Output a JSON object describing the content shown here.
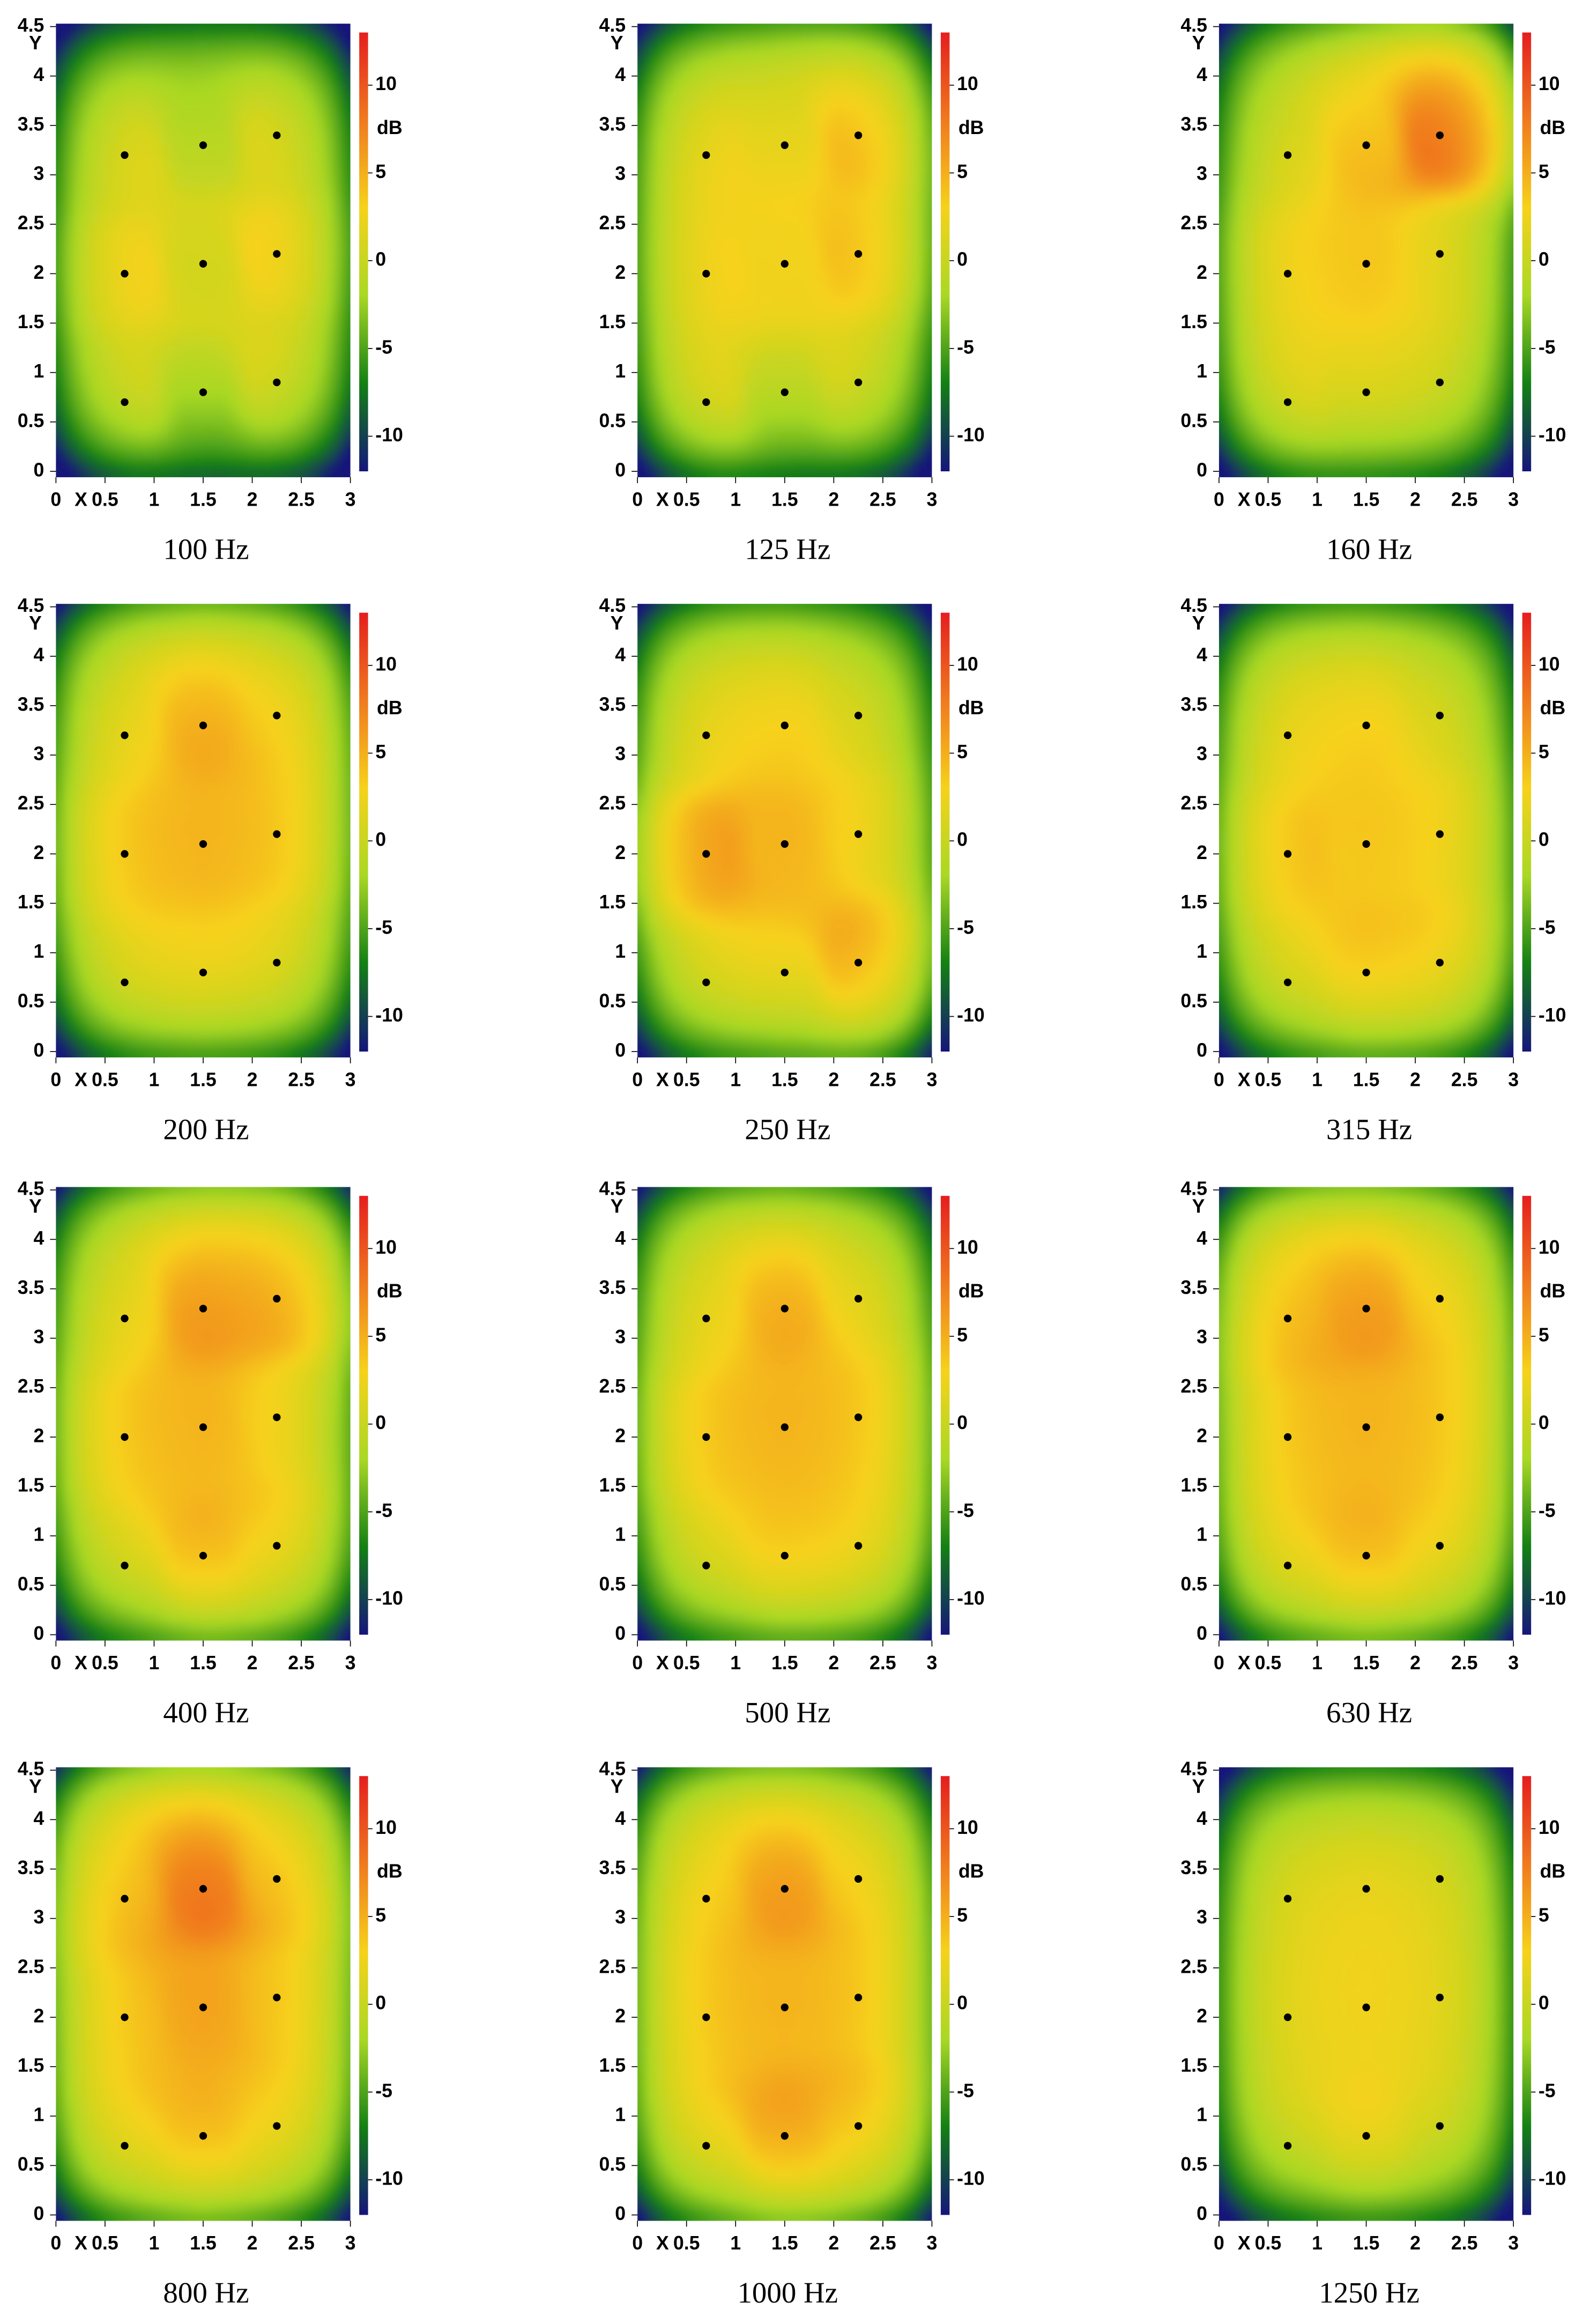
{
  "chart_data": [
    {
      "type": "heatmap",
      "title": "100 Hz",
      "x_label": "X",
      "y_label": "Y",
      "colorbar_label": "dB",
      "xlim": [
        0,
        3
      ],
      "ylim": [
        0,
        4.5
      ],
      "xticks": [
        0,
        0.5,
        1,
        1.5,
        2,
        2.5,
        3
      ],
      "yticks": [
        0,
        0.5,
        1,
        1.5,
        2,
        2.5,
        3,
        3.5,
        4,
        4.5
      ],
      "clim": [
        -12,
        13
      ],
      "cticks": [
        -10,
        -5,
        0,
        5,
        10
      ],
      "colormap": [
        "#15157a",
        "#138013",
        "#a9d824",
        "#f6d21a",
        "#f07a1e",
        "#e51e1e"
      ],
      "points": {
        "x": [
          0.7,
          0.7,
          0.7,
          1.5,
          1.5,
          1.5,
          2.25,
          2.25,
          2.25
        ],
        "y": [
          0.7,
          2,
          3.2,
          0.8,
          2.1,
          3.3,
          0.9,
          2.2,
          3.4
        ],
        "values": [
          3,
          4,
          3,
          0,
          1,
          0,
          3,
          4,
          3
        ]
      }
    },
    {
      "type": "heatmap",
      "title": "125 Hz",
      "x_label": "X",
      "y_label": "Y",
      "colorbar_label": "dB",
      "xlim": [
        0,
        3
      ],
      "ylim": [
        0,
        4.5
      ],
      "xticks": [
        0,
        0.5,
        1,
        1.5,
        2,
        2.5,
        3
      ],
      "yticks": [
        0,
        0.5,
        1,
        1.5,
        2,
        2.5,
        3,
        3.5,
        4,
        4.5
      ],
      "clim": [
        -12,
        13
      ],
      "cticks": [
        -10,
        -5,
        0,
        5,
        10
      ],
      "colormap": [
        "#15157a",
        "#138013",
        "#a9d824",
        "#f6d21a",
        "#f07a1e",
        "#e51e1e"
      ],
      "points": {
        "x": [
          0.7,
          0.7,
          0.7,
          1.5,
          1.5,
          1.5,
          2.25,
          2.25,
          2.25
        ],
        "y": [
          0.7,
          2,
          3.2,
          0.8,
          2.1,
          3.3,
          0.9,
          2.2,
          3.4
        ],
        "values": [
          4,
          4,
          4,
          1,
          3,
          3,
          3,
          5,
          6
        ]
      }
    },
    {
      "type": "heatmap",
      "title": "160 Hz",
      "x_label": "X",
      "y_label": "Y",
      "colorbar_label": "dB",
      "xlim": [
        0,
        3
      ],
      "ylim": [
        0,
        4.5
      ],
      "xticks": [
        0,
        0.5,
        1,
        1.5,
        2,
        2.5,
        3
      ],
      "yticks": [
        0,
        0.5,
        1,
        1.5,
        2,
        2.5,
        3,
        3.5,
        4,
        4.5
      ],
      "clim": [
        -12,
        13
      ],
      "cticks": [
        -10,
        -5,
        0,
        5,
        10
      ],
      "colormap": [
        "#15157a",
        "#138013",
        "#a9d824",
        "#f6d21a",
        "#f07a1e",
        "#e51e1e"
      ],
      "points": {
        "x": [
          0.7,
          0.7,
          0.7,
          1.5,
          1.5,
          1.5,
          2.25,
          2.25,
          2.25
        ],
        "y": [
          0.7,
          2,
          3.2,
          0.8,
          2.1,
          3.3,
          0.9,
          2.2,
          3.4
        ],
        "values": [
          4,
          4,
          3,
          3,
          4,
          5,
          3,
          3,
          10
        ]
      }
    },
    {
      "type": "heatmap",
      "title": "200 Hz",
      "x_label": "X",
      "y_label": "Y",
      "colorbar_label": "dB",
      "xlim": [
        0,
        3
      ],
      "ylim": [
        0,
        4.5
      ],
      "xticks": [
        0,
        0.5,
        1,
        1.5,
        2,
        2.5,
        3
      ],
      "yticks": [
        0,
        0.5,
        1,
        1.5,
        2,
        2.5,
        3,
        3.5,
        4,
        4.5
      ],
      "clim": [
        -12,
        13
      ],
      "cticks": [
        -10,
        -5,
        0,
        5,
        10
      ],
      "colormap": [
        "#15157a",
        "#138013",
        "#a9d824",
        "#f6d21a",
        "#f07a1e",
        "#e51e1e"
      ],
      "points": {
        "x": [
          0.7,
          0.7,
          0.7,
          1.5,
          1.5,
          1.5,
          2.25,
          2.25,
          2.25
        ],
        "y": [
          0.7,
          2,
          3.2,
          0.8,
          2.1,
          3.3,
          0.9,
          2.2,
          3.4
        ],
        "values": [
          4,
          5,
          4,
          4,
          5,
          6,
          4,
          5,
          5
        ]
      }
    },
    {
      "type": "heatmap",
      "title": "250 Hz",
      "x_label": "X",
      "y_label": "Y",
      "colorbar_label": "dB",
      "xlim": [
        0,
        3
      ],
      "ylim": [
        0,
        4.5
      ],
      "xticks": [
        0,
        0.5,
        1,
        1.5,
        2,
        2.5,
        3
      ],
      "yticks": [
        0,
        0.5,
        1,
        1.5,
        2,
        2.5,
        3,
        3.5,
        4,
        4.5
      ],
      "clim": [
        -12,
        13
      ],
      "cticks": [
        -10,
        -5,
        0,
        5,
        10
      ],
      "colormap": [
        "#15157a",
        "#138013",
        "#a9d824",
        "#f6d21a",
        "#f07a1e",
        "#e51e1e"
      ],
      "points": {
        "x": [
          0.7,
          0.7,
          0.7,
          1.5,
          1.5,
          1.5,
          2.25,
          2.25,
          2.25
        ],
        "y": [
          0.7,
          2,
          3.2,
          0.8,
          2.1,
          3.3,
          0.9,
          2.2,
          3.4
        ],
        "values": [
          4,
          7,
          4,
          4,
          5,
          4,
          7,
          4,
          3
        ]
      }
    },
    {
      "type": "heatmap",
      "title": "315 Hz",
      "x_label": "X",
      "y_label": "Y",
      "colorbar_label": "dB",
      "xlim": [
        0,
        3
      ],
      "ylim": [
        0,
        4.5
      ],
      "xticks": [
        0,
        0.5,
        1,
        1.5,
        2,
        2.5,
        3
      ],
      "yticks": [
        0,
        0.5,
        1,
        1.5,
        2,
        2.5,
        3,
        3.5,
        4,
        4.5
      ],
      "clim": [
        -12,
        13
      ],
      "cticks": [
        -10,
        -5,
        0,
        5,
        10
      ],
      "colormap": [
        "#15157a",
        "#138013",
        "#a9d824",
        "#f6d21a",
        "#f07a1e",
        "#e51e1e"
      ],
      "points": {
        "x": [
          0.7,
          0.7,
          0.7,
          1.5,
          1.5,
          1.5,
          2.25,
          2.25,
          2.25
        ],
        "y": [
          0.7,
          2,
          3.2,
          0.8,
          2.1,
          3.3,
          0.9,
          2.2,
          3.4
        ],
        "values": [
          4,
          5,
          4,
          5,
          4,
          4,
          5,
          4,
          3
        ]
      }
    },
    {
      "type": "heatmap",
      "title": "400 Hz",
      "x_label": "X",
      "y_label": "Y",
      "colorbar_label": "dB",
      "xlim": [
        0,
        3
      ],
      "ylim": [
        0,
        4.5
      ],
      "xticks": [
        0,
        0.5,
        1,
        1.5,
        2,
        2.5,
        3
      ],
      "yticks": [
        0,
        0.5,
        1,
        1.5,
        2,
        2.5,
        3,
        3.5,
        4,
        4.5
      ],
      "clim": [
        -12,
        13
      ],
      "cticks": [
        -10,
        -5,
        0,
        5,
        10
      ],
      "colormap": [
        "#15157a",
        "#138013",
        "#a9d824",
        "#f6d21a",
        "#f07a1e",
        "#e51e1e"
      ],
      "points": {
        "x": [
          0.7,
          0.7,
          0.7,
          1.5,
          1.5,
          1.5,
          2.25,
          2.25,
          2.25
        ],
        "y": [
          0.7,
          2,
          3.2,
          0.8,
          2.1,
          3.3,
          0.9,
          2.2,
          3.4
        ],
        "values": [
          4,
          5,
          4,
          6,
          5,
          7,
          5,
          4,
          7
        ]
      }
    },
    {
      "type": "heatmap",
      "title": "500 Hz",
      "x_label": "X",
      "y_label": "Y",
      "colorbar_label": "dB",
      "xlim": [
        0,
        3
      ],
      "ylim": [
        0,
        4.5
      ],
      "xticks": [
        0,
        0.5,
        1,
        1.5,
        2,
        2.5,
        3
      ],
      "yticks": [
        0,
        0.5,
        1,
        1.5,
        2,
        2.5,
        3,
        3.5,
        4,
        4.5
      ],
      "clim": [
        -12,
        13
      ],
      "cticks": [
        -10,
        -5,
        0,
        5,
        10
      ],
      "colormap": [
        "#15157a",
        "#138013",
        "#a9d824",
        "#f6d21a",
        "#f07a1e",
        "#e51e1e"
      ],
      "points": {
        "x": [
          0.7,
          0.7,
          0.7,
          1.5,
          1.5,
          1.5,
          2.25,
          2.25,
          2.25
        ],
        "y": [
          0.7,
          2,
          3.2,
          0.8,
          2.1,
          3.3,
          0.9,
          2.2,
          3.4
        ],
        "values": [
          4,
          5,
          4,
          5,
          5,
          6,
          5,
          5,
          4
        ]
      }
    },
    {
      "type": "heatmap",
      "title": "630 Hz",
      "x_label": "X",
      "y_label": "Y",
      "colorbar_label": "dB",
      "xlim": [
        0,
        3
      ],
      "ylim": [
        0,
        4.5
      ],
      "xticks": [
        0,
        0.5,
        1,
        1.5,
        2,
        2.5,
        3
      ],
      "yticks": [
        0,
        0.5,
        1,
        1.5,
        2,
        2.5,
        3,
        3.5,
        4,
        4.5
      ],
      "clim": [
        -12,
        13
      ],
      "cticks": [
        -10,
        -5,
        0,
        5,
        10
      ],
      "colormap": [
        "#15157a",
        "#138013",
        "#a9d824",
        "#f6d21a",
        "#f07a1e",
        "#e51e1e"
      ],
      "points": {
        "x": [
          0.7,
          0.7,
          0.7,
          1.5,
          1.5,
          1.5,
          2.25,
          2.25,
          2.25
        ],
        "y": [
          0.7,
          2,
          3.2,
          0.8,
          2.1,
          3.3,
          0.9,
          2.2,
          3.4
        ],
        "values": [
          5,
          5,
          6,
          6,
          5,
          7,
          5,
          5,
          5
        ]
      }
    },
    {
      "type": "heatmap",
      "title": "800 Hz",
      "x_label": "X",
      "y_label": "Y",
      "colorbar_label": "dB",
      "xlim": [
        0,
        3
      ],
      "ylim": [
        0,
        4.5
      ],
      "xticks": [
        0,
        0.5,
        1,
        1.5,
        2,
        2.5,
        3
      ],
      "yticks": [
        0,
        0.5,
        1,
        1.5,
        2,
        2.5,
        3,
        3.5,
        4,
        4.5
      ],
      "clim": [
        -12,
        13
      ],
      "cticks": [
        -10,
        -5,
        0,
        5,
        10
      ],
      "colormap": [
        "#15157a",
        "#138013",
        "#a9d824",
        "#f6d21a",
        "#f07a1e",
        "#e51e1e"
      ],
      "points": {
        "x": [
          0.7,
          0.7,
          0.7,
          1.5,
          1.5,
          1.5,
          2.25,
          2.25,
          2.25
        ],
        "y": [
          0.7,
          2,
          3.2,
          0.8,
          2.1,
          3.3,
          0.9,
          2.2,
          3.4
        ],
        "values": [
          5,
          5,
          6,
          6,
          6,
          9,
          5,
          5,
          6
        ]
      }
    },
    {
      "type": "heatmap",
      "title": "1000 Hz",
      "x_label": "X",
      "y_label": "Y",
      "colorbar_label": "dB",
      "xlim": [
        0,
        3
      ],
      "ylim": [
        0,
        4.5
      ],
      "xticks": [
        0,
        0.5,
        1,
        1.5,
        2,
        2.5,
        3
      ],
      "yticks": [
        0,
        0.5,
        1,
        1.5,
        2,
        2.5,
        3,
        3.5,
        4,
        4.5
      ],
      "clim": [
        -12,
        13
      ],
      "cticks": [
        -10,
        -5,
        0,
        5,
        10
      ],
      "colormap": [
        "#15157a",
        "#138013",
        "#a9d824",
        "#f6d21a",
        "#f07a1e",
        "#e51e1e"
      ],
      "points": {
        "x": [
          0.7,
          0.7,
          0.7,
          1.5,
          1.5,
          1.5,
          2.25,
          2.25,
          2.25
        ],
        "y": [
          0.7,
          2,
          3.2,
          0.8,
          2.1,
          3.3,
          0.9,
          2.2,
          3.4
        ],
        "values": [
          5,
          5,
          5,
          7,
          5,
          7,
          6,
          5,
          5
        ]
      }
    },
    {
      "type": "heatmap",
      "title": "1250 Hz",
      "x_label": "X",
      "y_label": "Y",
      "colorbar_label": "dB",
      "xlim": [
        0,
        3
      ],
      "ylim": [
        0,
        4.5
      ],
      "xticks": [
        0,
        0.5,
        1,
        1.5,
        2,
        2.5,
        3
      ],
      "yticks": [
        0,
        0.5,
        1,
        1.5,
        2,
        2.5,
        3,
        3.5,
        4,
        4.5
      ],
      "clim": [
        -12,
        13
      ],
      "cticks": [
        -10,
        -5,
        0,
        5,
        10
      ],
      "colormap": [
        "#15157a",
        "#138013",
        "#a9d824",
        "#f6d21a",
        "#f07a1e",
        "#e51e1e"
      ],
      "points": {
        "x": [
          0.7,
          0.7,
          0.7,
          1.5,
          1.5,
          1.5,
          2.25,
          2.25,
          2.25
        ],
        "y": [
          0.7,
          2,
          3.2,
          0.8,
          2.1,
          3.3,
          0.9,
          2.2,
          3.4
        ],
        "values": [
          3,
          3,
          3,
          4,
          3,
          3,
          3,
          3,
          3
        ]
      }
    }
  ]
}
